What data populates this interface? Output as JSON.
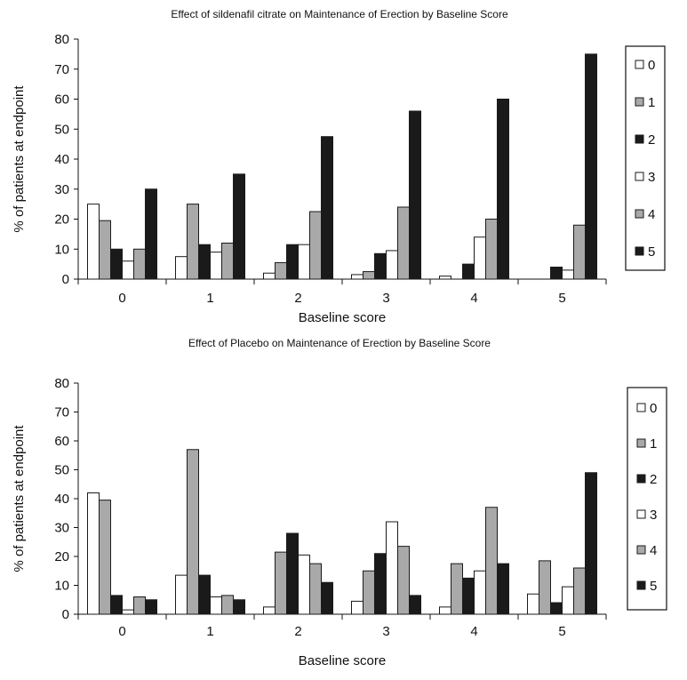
{
  "colors": {
    "series": [
      "#ffffff",
      "#a9a9a9",
      "#1a1a1a",
      "#ffffff",
      "#a9a9a9",
      "#1a1a1a"
    ],
    "stroke": "#1a1a1a"
  },
  "chart_data": [
    {
      "type": "bar",
      "title": "Effect of sildenafil citrate on Maintenance of Erection by Baseline Score",
      "xlabel": "Baseline score",
      "ylabel": "% of patients at endpoint",
      "ylim": [
        0,
        80
      ],
      "yticks": [
        0,
        10,
        20,
        30,
        40,
        50,
        60,
        70,
        80
      ],
      "categories": [
        "0",
        "1",
        "2",
        "3",
        "4",
        "5"
      ],
      "legend_position": "right",
      "series": [
        {
          "name": "0",
          "values": [
            25,
            7.5,
            2,
            1.5,
            1,
            0
          ]
        },
        {
          "name": "1",
          "values": [
            19.5,
            25,
            5.5,
            2.5,
            0,
            0
          ]
        },
        {
          "name": "2",
          "values": [
            10,
            11.5,
            11.5,
            8.5,
            5,
            4
          ]
        },
        {
          "name": "3",
          "values": [
            6,
            9,
            11.5,
            9.5,
            14,
            3
          ]
        },
        {
          "name": "4",
          "values": [
            10,
            12,
            22.5,
            24,
            20,
            18
          ]
        },
        {
          "name": "5",
          "values": [
            30,
            35,
            47.5,
            56,
            60,
            75
          ]
        }
      ]
    },
    {
      "type": "bar",
      "title": "Effect of Placebo on Maintenance of Erection by Baseline Score",
      "xlabel": "Baseline score",
      "ylabel": "% of patients at endpoint",
      "ylim": [
        0,
        80
      ],
      "yticks": [
        0,
        10,
        20,
        30,
        40,
        50,
        60,
        70,
        80
      ],
      "categories": [
        "0",
        "1",
        "2",
        "3",
        "4",
        "5"
      ],
      "legend_position": "right",
      "series": [
        {
          "name": "0",
          "values": [
            42,
            13.5,
            2.5,
            4.5,
            2.5,
            7
          ]
        },
        {
          "name": "1",
          "values": [
            39.5,
            57,
            21.5,
            15,
            17.5,
            18.5
          ]
        },
        {
          "name": "2",
          "values": [
            6.5,
            13.5,
            28,
            21,
            12.5,
            4
          ]
        },
        {
          "name": "3",
          "values": [
            1.5,
            6,
            20.5,
            32,
            15,
            9.5
          ]
        },
        {
          "name": "4",
          "values": [
            6,
            6.5,
            17.5,
            23.5,
            37,
            16
          ]
        },
        {
          "name": "5",
          "values": [
            5,
            5,
            11,
            6.5,
            17.5,
            49
          ]
        }
      ]
    }
  ]
}
